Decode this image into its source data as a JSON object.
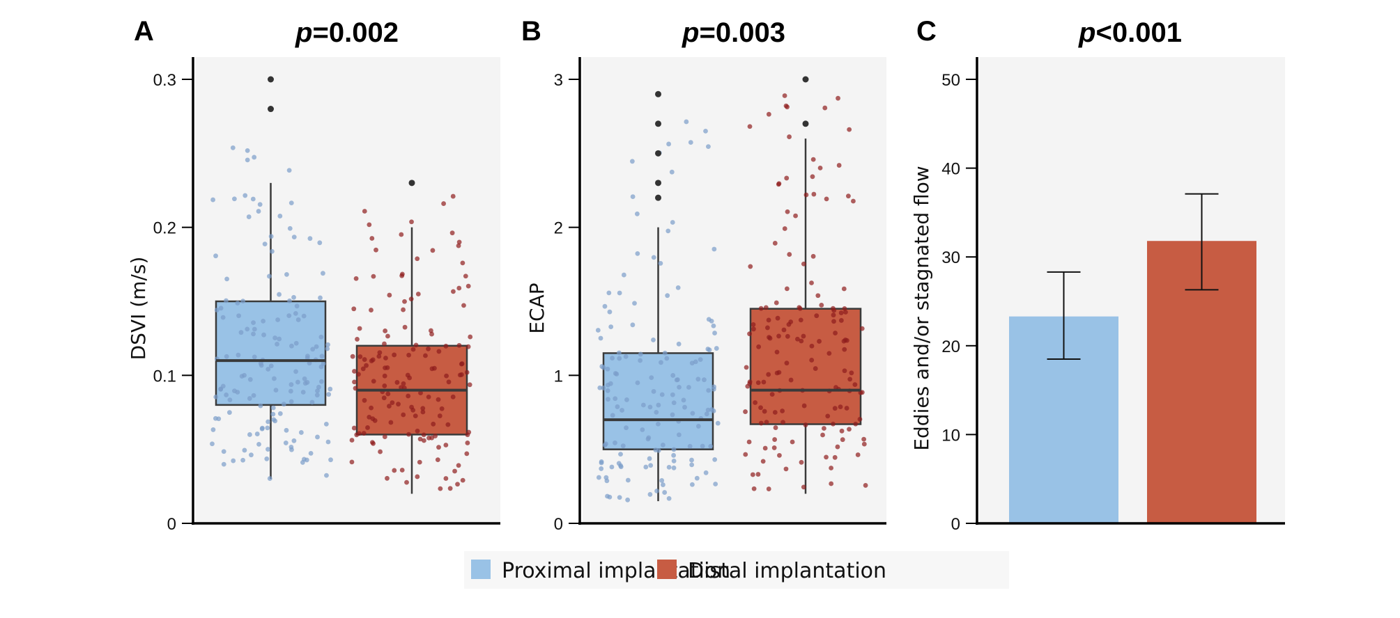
{
  "colors": {
    "proximal": "#99c2e6",
    "distal": "#c75c43",
    "proximal_point": "#7a9cc9",
    "distal_point": "#8e1d1d",
    "outlier": "#333333",
    "panel_bg": "#f4f4f4",
    "box_edge": "#3a3a3a"
  },
  "legend": {
    "items": [
      {
        "label": "Proximal implantation",
        "series": "proximal"
      },
      {
        "label": "Distal implantation",
        "series": "distal"
      }
    ],
    "placement": "bottom-center"
  },
  "chart_data": [
    {
      "panel": "A",
      "type": "box",
      "title_p": "p",
      "title_rest": "=0.002",
      "ylabel": "DSVI (m/s)",
      "xlabel": "",
      "ylim": [
        0,
        0.3
      ],
      "yticks": [
        0,
        0.1,
        0.2,
        0.3
      ],
      "ytick_labels": [
        "0",
        "0.1",
        "0.2",
        "0.3"
      ],
      "categories": [
        "Proximal implantation",
        "Distal implantation"
      ],
      "series": [
        {
          "name": "Proximal implantation",
          "key": "proximal",
          "q1": 0.08,
          "median": 0.11,
          "q3": 0.15,
          "whisker_low": 0.03,
          "whisker_high": 0.23,
          "outliers": [
            0.28,
            0.3
          ],
          "jitter_n": 150,
          "jitter_min": 0.03,
          "jitter_max": 0.278
        },
        {
          "name": "Distal implantation",
          "key": "distal",
          "q1": 0.06,
          "median": 0.09,
          "q3": 0.12,
          "whisker_low": 0.02,
          "whisker_high": 0.2,
          "outliers": [
            0.23
          ],
          "jitter_n": 150,
          "jitter_min": 0.018,
          "jitter_max": 0.234
        }
      ]
    },
    {
      "panel": "B",
      "type": "box",
      "title_p": "p",
      "title_rest": "=0.003",
      "ylabel": "ECAP",
      "xlabel": "",
      "ylim": [
        0,
        3
      ],
      "yticks": [
        0,
        1,
        2,
        3
      ],
      "ytick_labels": [
        "0",
        "1",
        "2",
        "3"
      ],
      "categories": [
        "Proximal implantation",
        "Distal implantation"
      ],
      "series": [
        {
          "name": "Proximal implantation",
          "key": "proximal",
          "q1": 0.5,
          "median": 0.7,
          "q3": 1.15,
          "whisker_low": 0.15,
          "whisker_high": 2.0,
          "outliers": [
            2.2,
            2.3,
            2.5,
            2.7,
            2.9
          ],
          "jitter_n": 150,
          "jitter_min": 0.15,
          "jitter_max": 2.9
        },
        {
          "name": "Distal implantation",
          "key": "distal",
          "q1": 0.67,
          "median": 0.9,
          "q3": 1.45,
          "whisker_low": 0.2,
          "whisker_high": 2.6,
          "outliers": [
            2.7,
            3.0
          ],
          "jitter_n": 150,
          "jitter_min": 0.2,
          "jitter_max": 3.0
        }
      ]
    },
    {
      "panel": "C",
      "type": "bar",
      "title_p": "p",
      "title_rest": "<0.001",
      "ylabel": "Eddies and/or stagnated flow",
      "xlabel": "",
      "ylim": [
        0,
        50
      ],
      "yticks": [
        0,
        10,
        20,
        30,
        40,
        50
      ],
      "ytick_labels": [
        "0",
        "10",
        "20",
        "30",
        "40",
        "50"
      ],
      "categories": [
        "Proximal implantation",
        "Distal implantation"
      ],
      "series": [
        {
          "name": "Proximal implantation",
          "key": "proximal",
          "value": 23.3,
          "err_low": 18.5,
          "err_high": 28.3
        },
        {
          "name": "Distal implantation",
          "key": "distal",
          "value": 31.8,
          "err_low": 26.3,
          "err_high": 37.1
        }
      ]
    }
  ]
}
